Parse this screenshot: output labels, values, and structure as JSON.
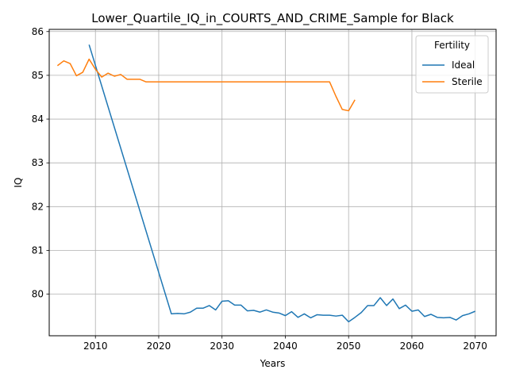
{
  "chart_data": {
    "type": "line",
    "title": "Lower_Quartile_IQ_in_COURTS_AND_CRIME_Sample for Black",
    "xlabel": "Years",
    "ylabel": "IQ",
    "xlim": [
      2002.7,
      2073.3
    ],
    "ylim": [
      79.05,
      86.05
    ],
    "xticks": [
      2010,
      2020,
      2030,
      2040,
      2050,
      2060,
      2070
    ],
    "yticks": [
      80,
      81,
      82,
      83,
      84,
      85,
      86
    ],
    "grid": true,
    "legend": {
      "title": "Fertility",
      "position": "top-right"
    },
    "series": [
      {
        "name": "Ideal",
        "color": "#1f77b4",
        "points": [
          [
            2009,
            85.7
          ],
          [
            2022,
            79.55
          ],
          [
            2023,
            79.56
          ],
          [
            2024,
            79.55
          ],
          [
            2025,
            79.59
          ],
          [
            2026,
            79.68
          ],
          [
            2027,
            79.68
          ],
          [
            2028,
            79.74
          ],
          [
            2029,
            79.64
          ],
          [
            2030,
            79.84
          ],
          [
            2031,
            79.85
          ],
          [
            2032,
            79.75
          ],
          [
            2033,
            79.75
          ],
          [
            2034,
            79.62
          ],
          [
            2035,
            79.63
          ],
          [
            2036,
            79.59
          ],
          [
            2037,
            79.64
          ],
          [
            2038,
            79.59
          ],
          [
            2039,
            79.57
          ],
          [
            2040,
            79.51
          ],
          [
            2041,
            79.6
          ],
          [
            2042,
            79.47
          ],
          [
            2043,
            79.55
          ],
          [
            2044,
            79.46
          ],
          [
            2045,
            79.53
          ],
          [
            2046,
            79.52
          ],
          [
            2047,
            79.52
          ],
          [
            2048,
            79.5
          ],
          [
            2049,
            79.52
          ],
          [
            2050,
            79.37
          ],
          [
            2051,
            79.47
          ],
          [
            2052,
            79.58
          ],
          [
            2053,
            79.74
          ],
          [
            2054,
            79.74
          ],
          [
            2055,
            79.92
          ],
          [
            2056,
            79.74
          ],
          [
            2057,
            79.89
          ],
          [
            2058,
            79.67
          ],
          [
            2059,
            79.75
          ],
          [
            2060,
            79.61
          ],
          [
            2061,
            79.64
          ],
          [
            2062,
            79.49
          ],
          [
            2063,
            79.54
          ],
          [
            2064,
            79.47
          ],
          [
            2065,
            79.46
          ],
          [
            2066,
            79.47
          ],
          [
            2067,
            79.41
          ],
          [
            2068,
            79.51
          ],
          [
            2069,
            79.55
          ],
          [
            2070,
            79.61
          ]
        ]
      },
      {
        "name": "Sterile",
        "color": "#ff7f0e",
        "points": [
          [
            2004,
            85.22
          ],
          [
            2005,
            85.33
          ],
          [
            2006,
            85.27
          ],
          [
            2007,
            84.99
          ],
          [
            2008,
            85.07
          ],
          [
            2009,
            85.37
          ],
          [
            2010,
            85.14
          ],
          [
            2011,
            84.96
          ],
          [
            2012,
            85.05
          ],
          [
            2013,
            84.98
          ],
          [
            2014,
            85.02
          ],
          [
            2015,
            84.91
          ],
          [
            2016,
            84.91
          ],
          [
            2017,
            84.91
          ],
          [
            2018,
            84.85
          ],
          [
            2019,
            84.85
          ],
          [
            2020,
            84.85
          ],
          [
            2021,
            84.85
          ],
          [
            2022,
            84.85
          ],
          [
            2023,
            84.85
          ],
          [
            2024,
            84.85
          ],
          [
            2025,
            84.85
          ],
          [
            2026,
            84.85
          ],
          [
            2027,
            84.85
          ],
          [
            2028,
            84.85
          ],
          [
            2029,
            84.85
          ],
          [
            2030,
            84.85
          ],
          [
            2031,
            84.85
          ],
          [
            2032,
            84.85
          ],
          [
            2033,
            84.85
          ],
          [
            2034,
            84.85
          ],
          [
            2035,
            84.85
          ],
          [
            2036,
            84.85
          ],
          [
            2037,
            84.85
          ],
          [
            2038,
            84.85
          ],
          [
            2039,
            84.85
          ],
          [
            2040,
            84.85
          ],
          [
            2041,
            84.85
          ],
          [
            2042,
            84.85
          ],
          [
            2043,
            84.85
          ],
          [
            2044,
            84.85
          ],
          [
            2045,
            84.85
          ],
          [
            2046,
            84.85
          ],
          [
            2047,
            84.85
          ],
          [
            2048,
            84.52
          ],
          [
            2049,
            84.22
          ],
          [
            2050,
            84.19
          ],
          [
            2051,
            84.44
          ]
        ]
      }
    ]
  }
}
